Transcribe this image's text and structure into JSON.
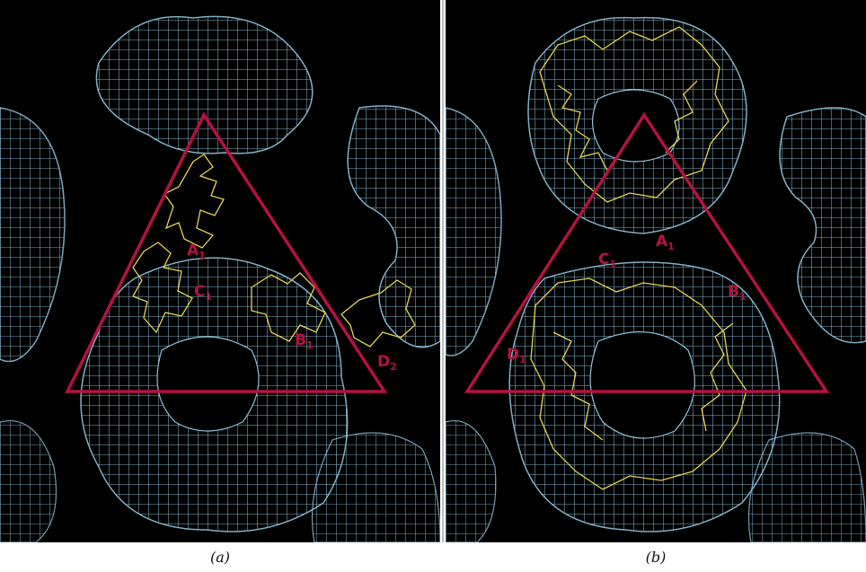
{
  "panels": [
    {
      "id": "a",
      "caption": "(a)",
      "labels": [
        {
          "letter": "A",
          "sub": "1"
        },
        {
          "letter": "C",
          "sub": "1"
        },
        {
          "letter": "B",
          "sub": "1"
        },
        {
          "letter": "D",
          "sub": "2"
        }
      ]
    },
    {
      "id": "b",
      "caption": "(b)",
      "labels": [
        {
          "letter": "A",
          "sub": "1"
        },
        {
          "letter": "C",
          "sub": "1"
        },
        {
          "letter": "B",
          "sub": "1"
        },
        {
          "letter": "D",
          "sub": "1"
        }
      ]
    }
  ],
  "colors": {
    "background": "#000000",
    "density_mesh": "#8fc3dd",
    "backbone_trace": "#e8d44a",
    "triangle": "#b5123f",
    "label": "#b5123f"
  }
}
